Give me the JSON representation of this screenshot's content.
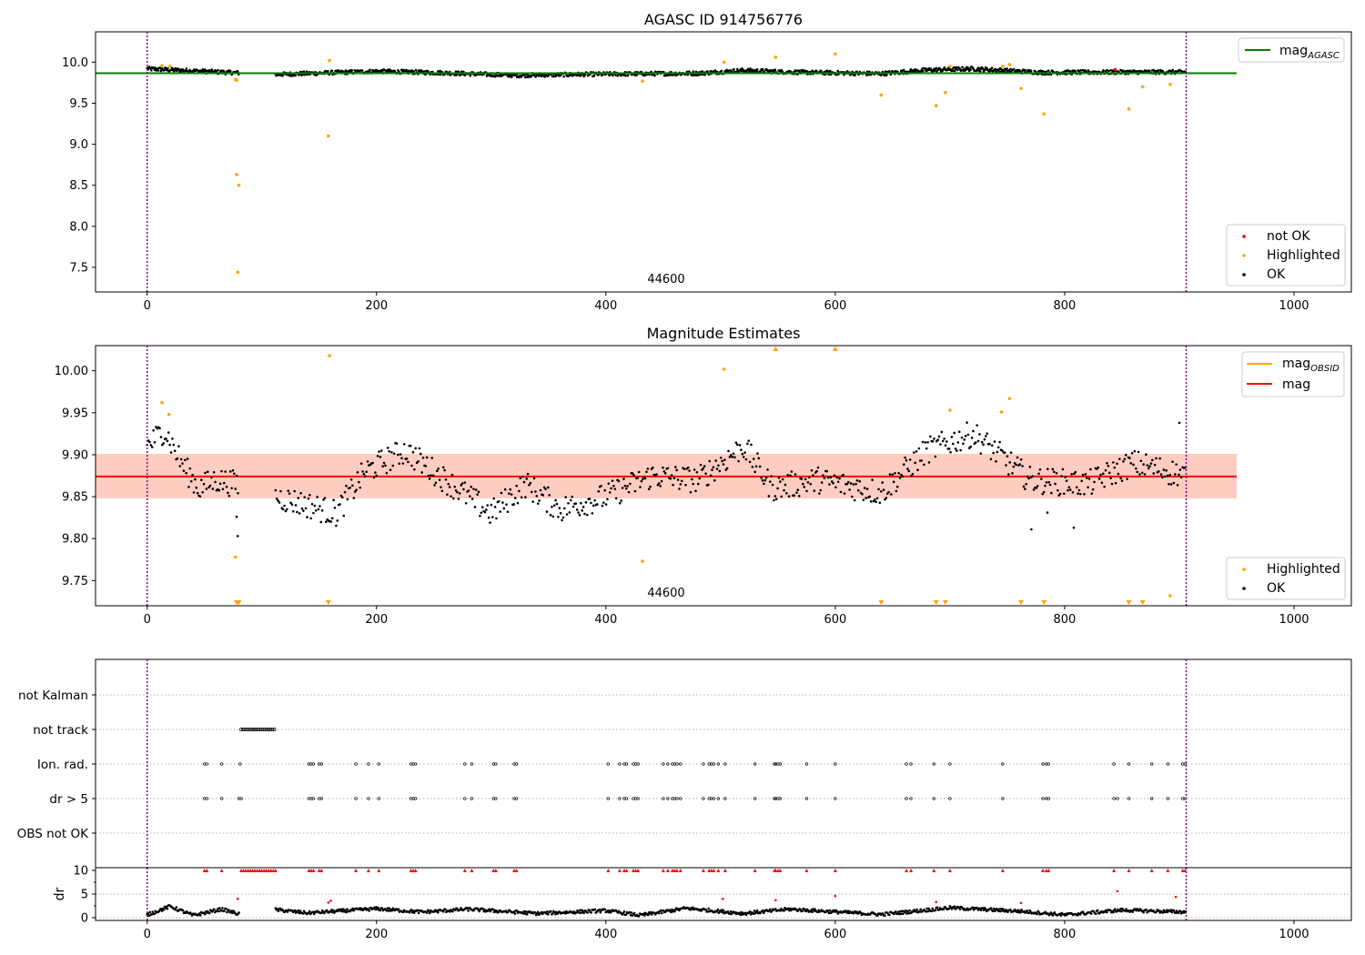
{
  "figure": {
    "panel1_title": "AGASC ID 914756776",
    "panel2_title": "Magnitude Estimates",
    "obsid_label": "44600",
    "dr_ylabel": "dr"
  },
  "legends": {
    "p1_line": "mag",
    "p1_line_sub": "AGASC",
    "p1_points": [
      "not OK",
      "Highlighted",
      "OK"
    ],
    "p2_lines": [
      {
        "label": "mag",
        "sub": "OBSID"
      },
      {
        "label": "mag",
        "sub": ""
      }
    ],
    "p2_points": [
      "Highlighted",
      "OK"
    ]
  },
  "colors": {
    "ok": "#000000",
    "highlighted": "#ffa500",
    "not_ok": "#ff0000",
    "mag_agasc": "#008000",
    "mag_obsid": "#ffa500",
    "mag": "#ff0000",
    "band": "#ffa07a",
    "obs_boundary": "#800080"
  },
  "chart_data": [
    {
      "type": "scatter",
      "title": "AGASC ID 914756776",
      "xlim": [
        -45,
        1050
      ],
      "ylim": [
        7.2,
        10.37
      ],
      "xticks": [
        0,
        200,
        400,
        600,
        800,
        1000
      ],
      "yticks": [
        "7.5",
        "8.0",
        "8.5",
        "9.0",
        "9.5",
        "10.0"
      ],
      "reference_lines": {
        "mag_agasc": 9.865
      },
      "obs_boundaries": [
        0,
        906
      ],
      "annotation": "44600",
      "legend_positions": [
        "top-right",
        "bottom-right"
      ],
      "ok_segments": [
        {
          "x": [
            0,
            80
          ],
          "y_start": 9.92,
          "y_end": 9.87
        },
        {
          "x": [
            112,
            906
          ],
          "knots": [
            [
              112,
              9.85
            ],
            [
              200,
              9.89
            ],
            [
              260,
              9.87
            ],
            [
              320,
              9.84
            ],
            [
              400,
              9.855
            ],
            [
              480,
              9.865
            ],
            [
              520,
              9.9
            ],
            [
              560,
              9.88
            ],
            [
              640,
              9.86
            ],
            [
              680,
              9.905
            ],
            [
              720,
              9.92
            ],
            [
              780,
              9.875
            ],
            [
              860,
              9.88
            ],
            [
              906,
              9.88
            ]
          ]
        }
      ],
      "highlighted": [
        {
          "x": 13,
          "y": 9.96
        },
        {
          "x": 20,
          "y": 9.95
        },
        {
          "x": 77,
          "y": 9.79
        },
        {
          "x": 78,
          "y": 9.78
        },
        {
          "x": 78,
          "y": 8.63
        },
        {
          "x": 80,
          "y": 8.5
        },
        {
          "x": 79,
          "y": 7.44
        },
        {
          "x": 158,
          "y": 9.1
        },
        {
          "x": 159,
          "y": 10.02
        },
        {
          "x": 432,
          "y": 9.77
        },
        {
          "x": 503,
          "y": 10.0
        },
        {
          "x": 548,
          "y": 10.06
        },
        {
          "x": 600,
          "y": 10.1
        },
        {
          "x": 640,
          "y": 9.6
        },
        {
          "x": 688,
          "y": 9.47
        },
        {
          "x": 696,
          "y": 9.63
        },
        {
          "x": 700,
          "y": 9.95
        },
        {
          "x": 746,
          "y": 9.95
        },
        {
          "x": 752,
          "y": 9.97
        },
        {
          "x": 762,
          "y": 9.68
        },
        {
          "x": 782,
          "y": 9.37
        },
        {
          "x": 856,
          "y": 9.43
        },
        {
          "x": 868,
          "y": 9.7
        },
        {
          "x": 892,
          "y": 9.73
        }
      ],
      "not_ok": [
        {
          "x": 844,
          "y": 9.91
        }
      ]
    },
    {
      "type": "scatter",
      "title": "Magnitude Estimates",
      "xlim": [
        -45,
        1050
      ],
      "ylim": [
        9.72,
        10.03
      ],
      "xticks": [
        0,
        200,
        400,
        600,
        800,
        1000
      ],
      "yticks": [
        "9.75",
        "9.80",
        "9.85",
        "9.90",
        "9.95",
        "10.00"
      ],
      "reference_lines": {
        "mag": 9.874,
        "mag_obsid": 9.874
      },
      "band": {
        "low": 9.848,
        "high": 9.901,
        "x": [
          -45,
          950
        ]
      },
      "obs_boundaries": [
        0,
        906
      ],
      "annotation": "44600",
      "legend_positions": [
        "top-right",
        "bottom-right"
      ],
      "ok_segments": [
        {
          "x": [
            0,
            80
          ],
          "knots": [
            [
              0,
              9.91
            ],
            [
              15,
              9.93
            ],
            [
              30,
              9.89
            ],
            [
              45,
              9.86
            ],
            [
              60,
              9.87
            ],
            [
              78,
              9.865
            ]
          ]
        },
        {
          "x": [
            112,
            906
          ],
          "knots": [
            [
              112,
              9.85
            ],
            [
              140,
              9.84
            ],
            [
              165,
              9.83
            ],
            [
              190,
              9.88
            ],
            [
              225,
              9.905
            ],
            [
              260,
              9.87
            ],
            [
              300,
              9.83
            ],
            [
              330,
              9.865
            ],
            [
              360,
              9.835
            ],
            [
              400,
              9.85
            ],
            [
              440,
              9.875
            ],
            [
              480,
              9.87
            ],
            [
              520,
              9.91
            ],
            [
              545,
              9.86
            ],
            [
              585,
              9.87
            ],
            [
              640,
              9.855
            ],
            [
              680,
              9.905
            ],
            [
              720,
              9.925
            ],
            [
              770,
              9.87
            ],
            [
              820,
              9.865
            ],
            [
              860,
              9.89
            ],
            [
              906,
              9.875
            ]
          ]
        }
      ],
      "highlighted": [
        {
          "x": 13,
          "y": 9.962
        },
        {
          "x": 19,
          "y": 9.948
        },
        {
          "x": 77,
          "y": 9.778
        },
        {
          "x": 159,
          "y": 10.018
        },
        {
          "x": 432,
          "y": 9.773
        },
        {
          "x": 503,
          "y": 10.002
        },
        {
          "x": 700,
          "y": 9.953
        },
        {
          "x": 745,
          "y": 9.951
        },
        {
          "x": 752,
          "y": 9.967
        },
        {
          "x": 892,
          "y": 9.732
        }
      ],
      "extra_ok": [
        {
          "x": 78,
          "y": 9.826
        },
        {
          "x": 79,
          "y": 9.803
        },
        {
          "x": 771,
          "y": 9.811
        },
        {
          "x": 785,
          "y": 9.831
        },
        {
          "x": 808,
          "y": 9.813
        },
        {
          "x": 900,
          "y": 9.938
        }
      ],
      "clipped_high": [
        548,
        600
      ],
      "clipped_low": [
        78,
        79,
        80,
        158,
        640,
        688,
        696,
        762,
        782,
        856,
        868
      ]
    },
    {
      "type": "scatter",
      "title": "",
      "xlim": [
        -45,
        1050
      ],
      "categories": [
        "not Kalman",
        "not track",
        "Ion. rad.",
        "dr > 5",
        "OBS not OK"
      ],
      "flags": {
        "not track": {
          "ranges": [
            [
              82,
              112
            ]
          ]
        },
        "Ion. rad.": {
          "x": [
            50,
            52,
            65,
            81,
            141,
            143,
            145,
            150,
            152,
            182,
            193,
            202,
            230,
            232,
            234,
            277,
            283,
            302,
            304,
            320,
            322,
            402,
            412,
            416,
            418,
            424,
            426,
            428,
            450,
            454,
            458,
            460,
            462,
            465,
            485,
            490,
            492,
            494,
            498,
            504,
            530,
            547,
            548,
            550,
            552,
            575,
            600,
            662,
            666,
            686,
            700,
            746,
            781,
            784,
            786,
            843,
            856,
            876,
            890,
            903,
            905
          ]
        },
        "dr > 5": {
          "x": [
            50,
            52,
            65,
            80,
            82,
            141,
            143,
            145,
            150,
            152,
            182,
            193,
            202,
            230,
            232,
            234,
            277,
            283,
            302,
            304,
            320,
            322,
            402,
            412,
            416,
            418,
            424,
            426,
            428,
            450,
            454,
            458,
            460,
            462,
            465,
            485,
            490,
            492,
            494,
            498,
            504,
            530,
            547,
            548,
            550,
            552,
            575,
            600,
            662,
            666,
            686,
            700,
            746,
            781,
            784,
            786,
            843,
            846,
            856,
            876,
            890,
            903,
            905
          ]
        }
      }
    },
    {
      "type": "scatter",
      "title": "",
      "ylabel": "dr",
      "xlim": [
        -45,
        1050
      ],
      "ylim": [
        0,
        10
      ],
      "xticks": [
        0,
        200,
        400,
        600,
        800,
        1000
      ],
      "yticks": [
        "0",
        "5",
        "10"
      ],
      "clipped_at_10": [
        50,
        52,
        65,
        82,
        84,
        86,
        88,
        90,
        92,
        94,
        96,
        98,
        100,
        102,
        104,
        106,
        108,
        110,
        112,
        141,
        143,
        145,
        150,
        152,
        182,
        193,
        202,
        230,
        232,
        234,
        277,
        283,
        302,
        304,
        320,
        322,
        402,
        412,
        416,
        418,
        424,
        426,
        428,
        450,
        454,
        458,
        460,
        462,
        465,
        485,
        490,
        492,
        494,
        498,
        504,
        530,
        547,
        548,
        550,
        552,
        575,
        600,
        662,
        666,
        686,
        700,
        746,
        781,
        784,
        786,
        843,
        856,
        876,
        890,
        903,
        905
      ],
      "red_points": [
        {
          "x": 79,
          "y": 4
        },
        {
          "x": 158,
          "y": 3.2
        },
        {
          "x": 160,
          "y": 3.6
        },
        {
          "x": 502,
          "y": 4
        },
        {
          "x": 548,
          "y": 3.7
        },
        {
          "x": 600,
          "y": 4.6
        },
        {
          "x": 688,
          "y": 3.3
        },
        {
          "x": 762,
          "y": 3.1
        },
        {
          "x": 846,
          "y": 5.6
        },
        {
          "x": 897,
          "y": 4.4
        }
      ],
      "ok_segments": [
        {
          "x": [
            0,
            80
          ],
          "knots": [
            [
              0,
              0.6
            ],
            [
              20,
              2.4
            ],
            [
              40,
              0.5
            ],
            [
              65,
              1.8
            ],
            [
              80,
              0.8
            ]
          ]
        },
        {
          "x": [
            112,
            906
          ],
          "knots": [
            [
              112,
              1.7
            ],
            [
              140,
              1.0
            ],
            [
              200,
              1.9
            ],
            [
              240,
              1.2
            ],
            [
              280,
              1.8
            ],
            [
              340,
              0.9
            ],
            [
              400,
              1.5
            ],
            [
              430,
              0.5
            ],
            [
              470,
              2.0
            ],
            [
              520,
              0.9
            ],
            [
              560,
              1.8
            ],
            [
              640,
              0.7
            ],
            [
              700,
              2.1
            ],
            [
              760,
              1.4
            ],
            [
              800,
              0.6
            ],
            [
              850,
              1.6
            ],
            [
              906,
              1.2
            ]
          ]
        }
      ]
    }
  ]
}
